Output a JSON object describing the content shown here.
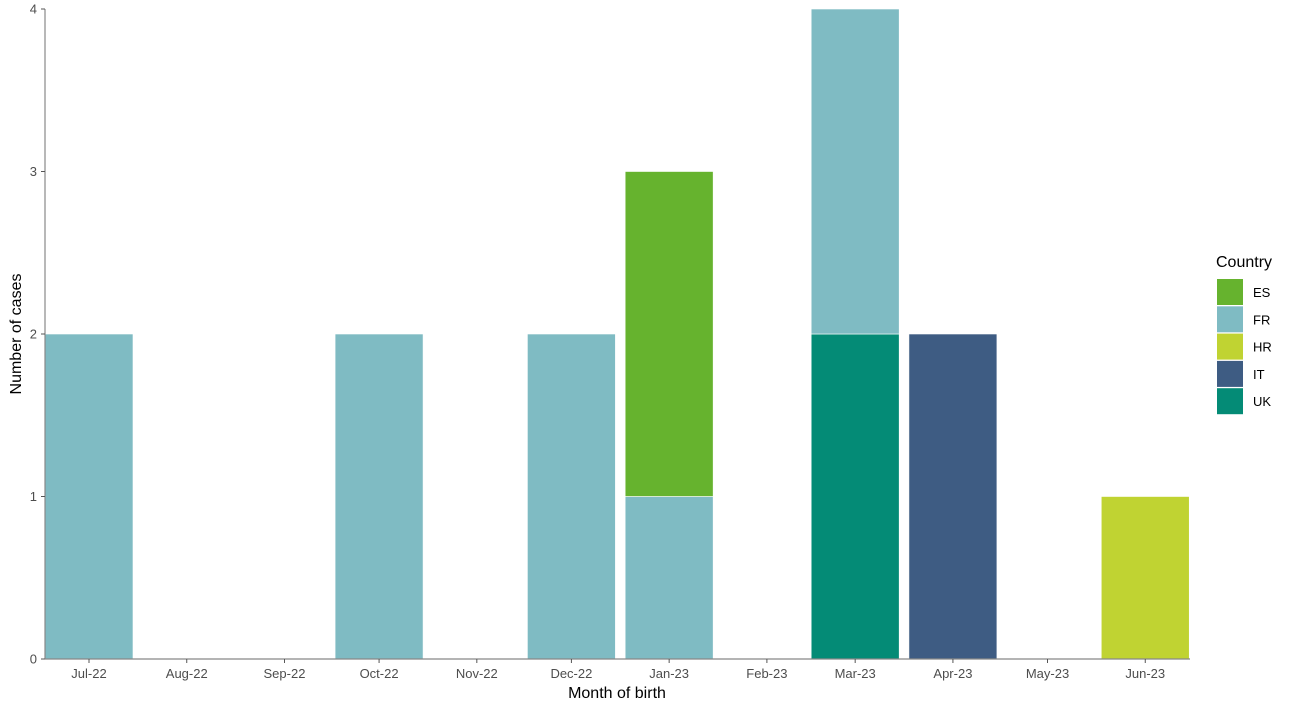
{
  "chart_data": {
    "type": "bar",
    "stacked": true,
    "xlabel": "Month of birth",
    "ylabel": "Number of cases",
    "ylim": [
      0,
      4
    ],
    "yticks": [
      0,
      1,
      2,
      3,
      4
    ],
    "grid": false,
    "categories": [
      "Jul-22",
      "Aug-22",
      "Sep-22",
      "Oct-22",
      "Nov-22",
      "Dec-22",
      "Jan-23",
      "Feb-23",
      "Mar-23",
      "Apr-23",
      "May-23",
      "Jun-23"
    ],
    "legend": {
      "title": "Country",
      "placement": "right"
    },
    "series": [
      {
        "name": "ES",
        "color": "#66b32e",
        "values": [
          0,
          0,
          0,
          0,
          0,
          0,
          2,
          0,
          0,
          0,
          0,
          0
        ]
      },
      {
        "name": "FR",
        "color": "#7fbbc3",
        "values": [
          2,
          0,
          0,
          2,
          0,
          2,
          1,
          0,
          2,
          0,
          0,
          0
        ]
      },
      {
        "name": "HR",
        "color": "#c0d332",
        "values": [
          0,
          0,
          0,
          0,
          0,
          0,
          0,
          0,
          0,
          0,
          0,
          1
        ]
      },
      {
        "name": "IT",
        "color": "#3e5c83",
        "values": [
          0,
          0,
          0,
          0,
          0,
          0,
          0,
          0,
          0,
          2,
          0,
          0
        ]
      },
      {
        "name": "UK",
        "color": "#048b76",
        "values": [
          0,
          0,
          0,
          0,
          0,
          0,
          0,
          0,
          2,
          0,
          0,
          0
        ]
      }
    ]
  }
}
